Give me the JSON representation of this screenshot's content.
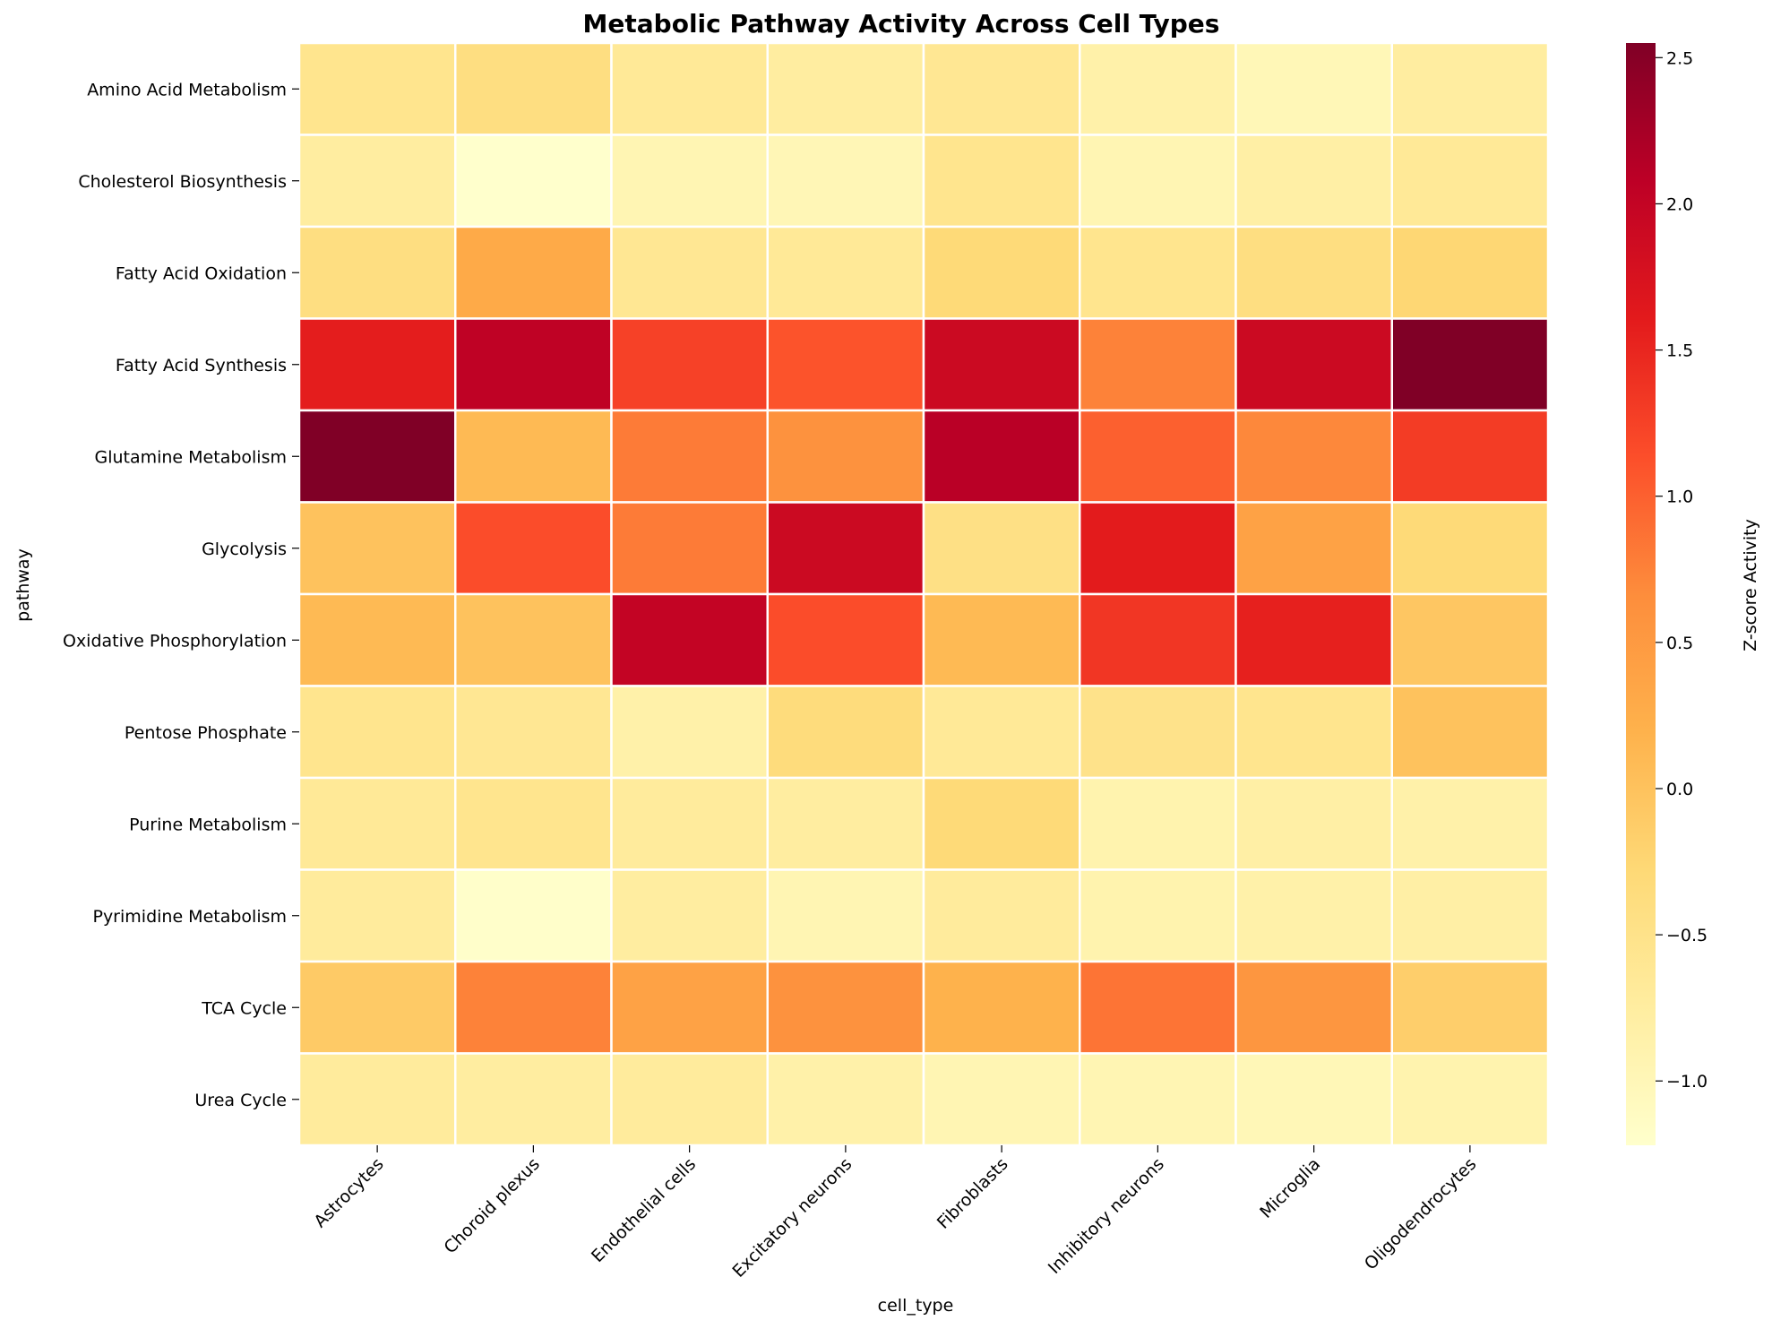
{
  "chart_data": {
    "type": "heatmap",
    "title": "Metabolic Pathway Activity Across Cell Types",
    "xlabel": "cell_type",
    "ylabel": "pathway",
    "x": [
      "Astrocytes",
      "Choroid plexus",
      "Endothelial cells",
      "Excitatory neurons",
      "Fibroblasts",
      "Inhibitory neurons",
      "Microglia",
      "Oligodendrocytes"
    ],
    "y": [
      "Amino Acid Metabolism",
      "Cholesterol Biosynthesis",
      "Fatty Acid Oxidation",
      "Fatty Acid Synthesis",
      "Glutamine Metabolism",
      "Glycolysis",
      "Oxidative Phosphorylation",
      "Pentose Phosphate",
      "Purine Metabolism",
      "Pyrimidine Metabolism",
      "TCA Cycle",
      "Urea Cycle"
    ],
    "values": [
      [
        -0.55,
        -0.4,
        -0.65,
        -0.75,
        -0.6,
        -0.85,
        -1.0,
        -0.75
      ],
      [
        -0.75,
        -1.22,
        -0.95,
        -0.98,
        -0.55,
        -0.95,
        -0.8,
        -0.65
      ],
      [
        -0.4,
        0.3,
        -0.6,
        -0.65,
        -0.3,
        -0.55,
        -0.4,
        -0.25
      ],
      [
        1.58,
        2.05,
        1.25,
        1.1,
        1.9,
        0.75,
        1.9,
        2.55
      ],
      [
        2.55,
        0.1,
        0.8,
        0.6,
        2.1,
        1.0,
        0.7,
        1.3
      ],
      [
        0.0,
        1.15,
        0.8,
        1.9,
        -0.45,
        1.6,
        0.4,
        -0.3
      ],
      [
        0.1,
        0.0,
        2.0,
        1.15,
        0.1,
        1.35,
        1.55,
        -0.05
      ],
      [
        -0.55,
        -0.6,
        -0.85,
        -0.35,
        -0.65,
        -0.5,
        -0.55,
        0.0
      ],
      [
        -0.65,
        -0.55,
        -0.7,
        -0.75,
        -0.3,
        -0.9,
        -0.8,
        -0.85
      ],
      [
        -0.7,
        -1.2,
        -0.75,
        -0.95,
        -0.7,
        -0.9,
        -0.85,
        -0.8
      ],
      [
        -0.1,
        0.75,
        0.4,
        0.6,
        0.2,
        0.85,
        0.55,
        -0.15
      ],
      [
        -0.7,
        -0.75,
        -0.7,
        -0.85,
        -0.95,
        -0.95,
        -1.0,
        -0.9
      ]
    ],
    "colormap": "YlOrRd",
    "color_stops": [
      "#ffffcc",
      "#ffeda0",
      "#fed976",
      "#feb24c",
      "#fd8d3c",
      "#fc4e2a",
      "#e31a1c",
      "#bd0026",
      "#800026"
    ],
    "vmin": -1.22,
    "vmax": 2.55,
    "colorbar_label": "Z-score Activity",
    "colorbar_ticks": [
      -1.0,
      -0.5,
      0.0,
      0.5,
      1.0,
      1.5,
      2.0,
      2.5
    ],
    "colorbar_tick_labels": [
      "−1.0",
      "−0.5",
      "0.0",
      "0.5",
      "1.0",
      "1.5",
      "2.0",
      "2.5"
    ],
    "grid": false,
    "cell_border_color": "#ffffff"
  }
}
